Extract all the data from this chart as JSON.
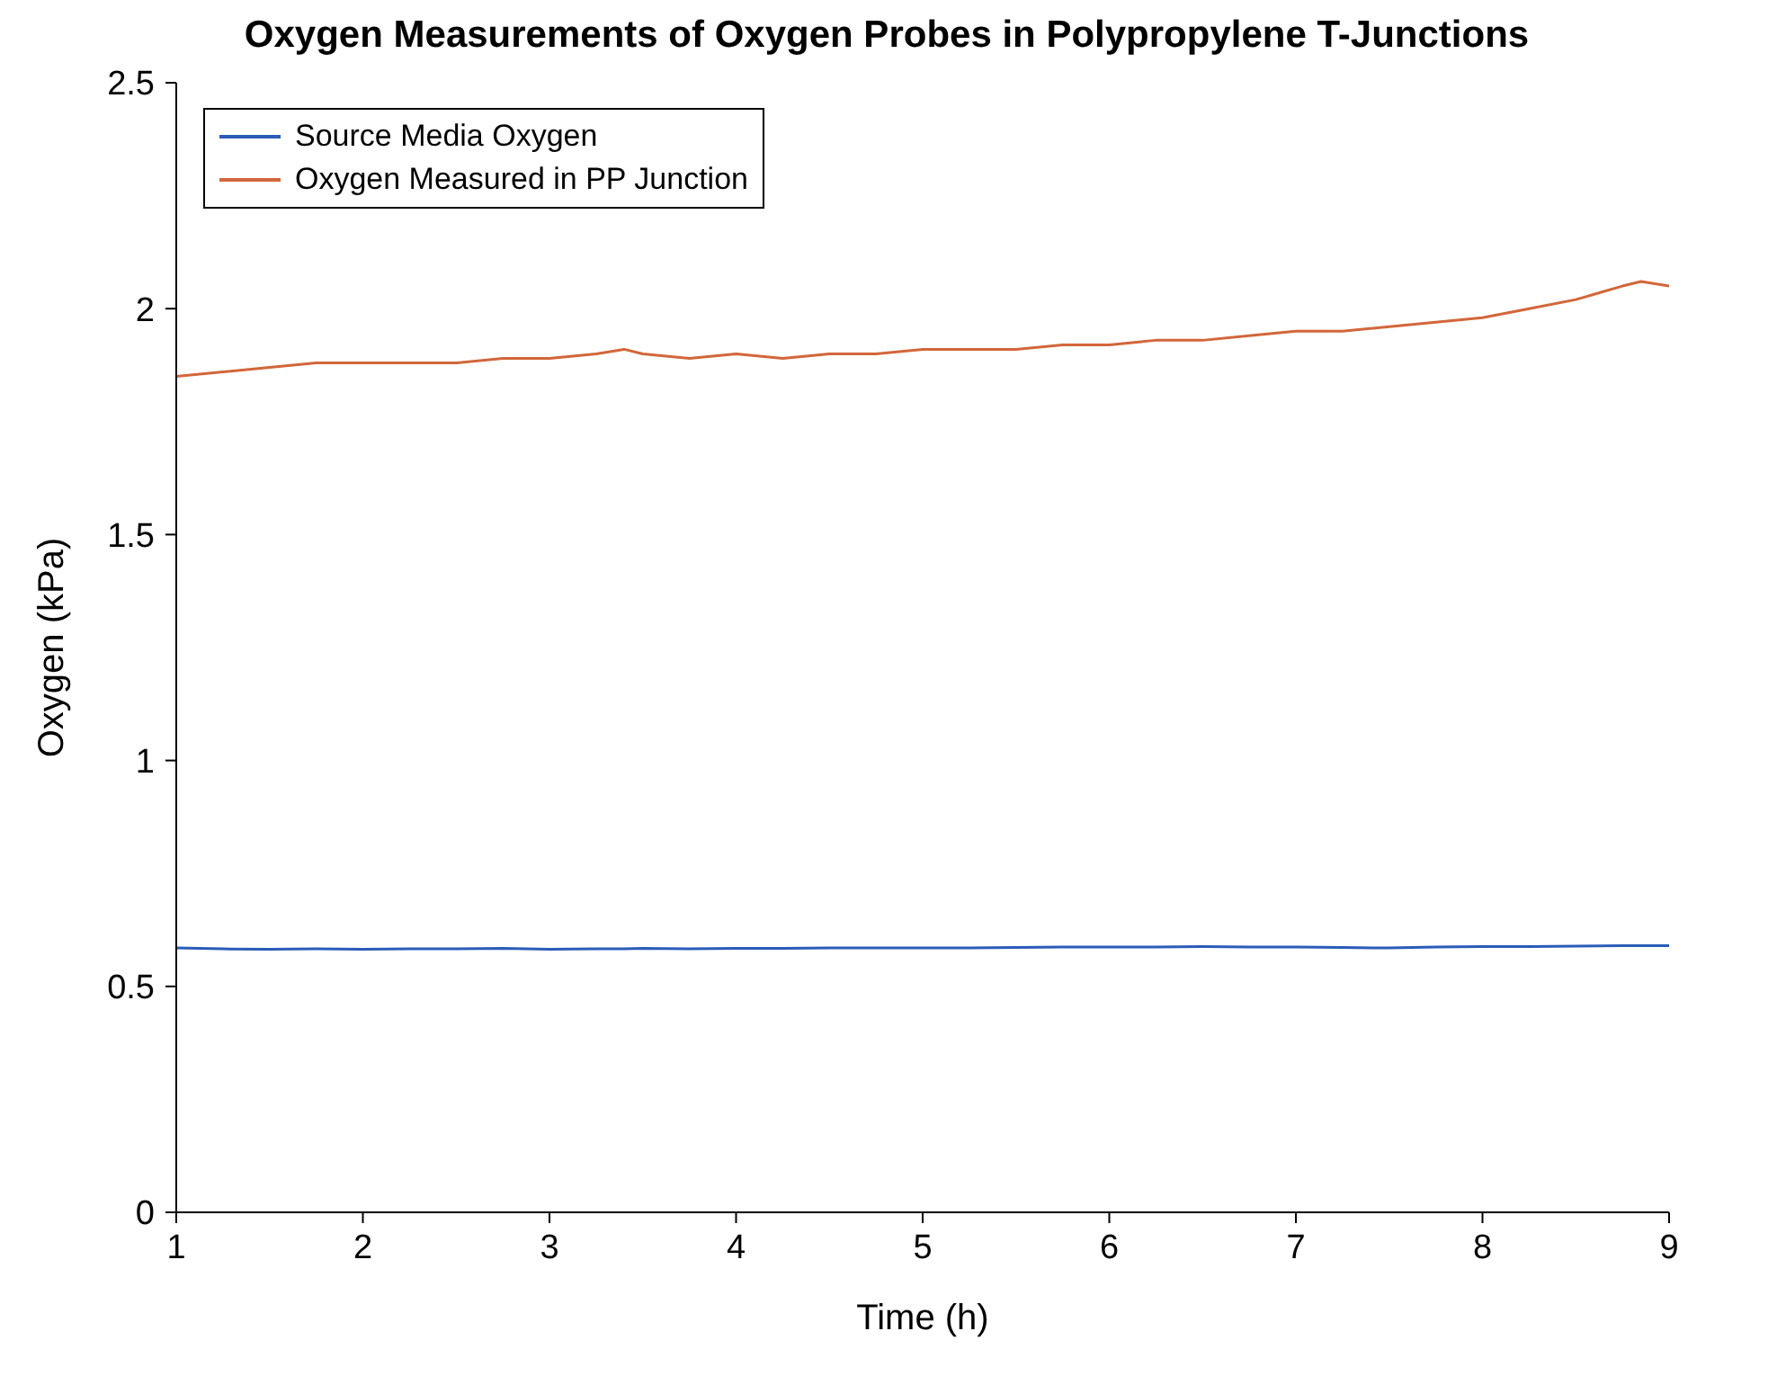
{
  "chart_data": {
    "type": "line",
    "title": "Oxygen Measurements of Oxygen Probes in Polypropylene T-Junctions",
    "xlabel": "Time (h)",
    "ylabel": "Oxygen (kPa)",
    "xlim": [
      1,
      9
    ],
    "xticks": [
      1,
      2,
      3,
      4,
      5,
      6,
      7,
      8,
      9
    ],
    "ylim": [
      0,
      2.5
    ],
    "yticks": [
      0,
      0.5,
      1,
      1.5,
      2,
      2.5
    ],
    "grid": false,
    "legend": "top left",
    "marker": "none",
    "line_style": "solid",
    "x": [
      1,
      1.25,
      1.5,
      1.75,
      2,
      2.25,
      2.5,
      2.75,
      3,
      3.25,
      3.4,
      3.5,
      3.75,
      4,
      4.25,
      4.5,
      4.75,
      5,
      5.25,
      5.5,
      5.75,
      6,
      6.25,
      6.5,
      6.75,
      7,
      7.25,
      7.5,
      7.75,
      8,
      8.25,
      8.5,
      8.75,
      8.85,
      9
    ],
    "series": [
      {
        "name": "Source Media Oxygen",
        "color": "#2a5cb8",
        "values": [
          0.585,
          0.583,
          0.582,
          0.583,
          0.582,
          0.583,
          0.583,
          0.584,
          0.582,
          0.583,
          0.583,
          0.584,
          0.583,
          0.584,
          0.584,
          0.585,
          0.585,
          0.585,
          0.585,
          0.586,
          0.587,
          0.587,
          0.587,
          0.588,
          0.587,
          0.587,
          0.586,
          0.585,
          0.587,
          0.588,
          0.588,
          0.589,
          0.59,
          0.59,
          0.59
        ]
      },
      {
        "name": "Oxygen Measured in PP Junction",
        "color": "#d2663a",
        "values": [
          1.85,
          1.86,
          1.87,
          1.88,
          1.88,
          1.88,
          1.88,
          1.89,
          1.89,
          1.9,
          1.91,
          1.9,
          1.89,
          1.9,
          1.89,
          1.9,
          1.9,
          1.91,
          1.91,
          1.91,
          1.92,
          1.92,
          1.93,
          1.93,
          1.94,
          1.95,
          1.95,
          1.96,
          1.97,
          1.98,
          2,
          2.02,
          2.05,
          2.06,
          2.05
        ]
      }
    ]
  }
}
